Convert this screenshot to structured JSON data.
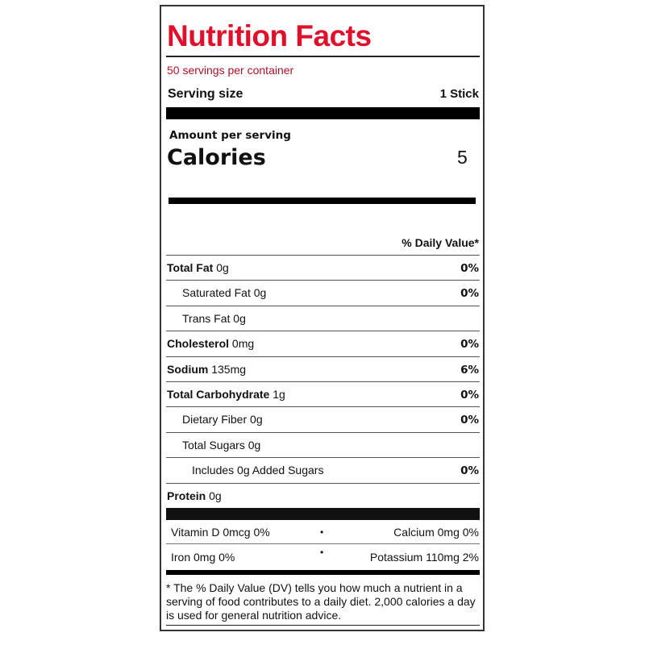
{
  "title": "Nutrition Facts",
  "servings_per_container": "50 servings per container",
  "serving_size": {
    "label": "Serving size",
    "value": "1 Stick"
  },
  "amount_per_serving": "Amount per serving",
  "calories": {
    "label": "Calories",
    "value": "5"
  },
  "daily_value_header": "% Daily Value*",
  "nutrients": [
    {
      "label": "Total Fat",
      "amount": "0g",
      "dv": "0%",
      "indent": 0,
      "bold": true
    },
    {
      "label": "Saturated Fat",
      "amount": "0g",
      "dv": "0%",
      "indent": 1,
      "bold": false
    },
    {
      "label": "Trans Fat",
      "amount": "0g",
      "dv": "",
      "indent": 1,
      "bold": false
    },
    {
      "label": "Cholesterol",
      "amount": "0mg",
      "dv": "0%",
      "indent": 0,
      "bold": true
    },
    {
      "label": "Sodium",
      "amount": "135mg",
      "dv": "6%",
      "indent": 0,
      "bold": true
    },
    {
      "label": "Total Carbohydrate",
      "amount": "1g",
      "dv": "0%",
      "indent": 0,
      "bold": true
    },
    {
      "label": "Dietary Fiber",
      "amount": "0g",
      "dv": "0%",
      "indent": 1,
      "bold": false
    },
    {
      "label": "Total Sugars",
      "amount": "0g",
      "dv": "",
      "indent": 1,
      "bold": false
    },
    {
      "label": "Includes 0g Added Sugars",
      "amount": "",
      "dv": "0%",
      "indent": 2,
      "bold": false
    },
    {
      "label": "Protein",
      "amount": "0g",
      "dv": "",
      "indent": 0,
      "bold": true
    }
  ],
  "micronutrients": {
    "vitamin_d": "Vitamin D 0mcg 0%",
    "calcium": "Calcium 0mg 0%",
    "iron": "Iron 0mg 0%",
    "potassium": "Potassium 110mg 2%",
    "separator": "•"
  },
  "footnote": "* The % Daily Value (DV) tells you how much a nutrient in a serving of food contributes to a daily diet. 2,000 calories a day is used for general nutrition advice.",
  "colors": {
    "title": "#e0102a",
    "servings": "#b0102a"
  }
}
